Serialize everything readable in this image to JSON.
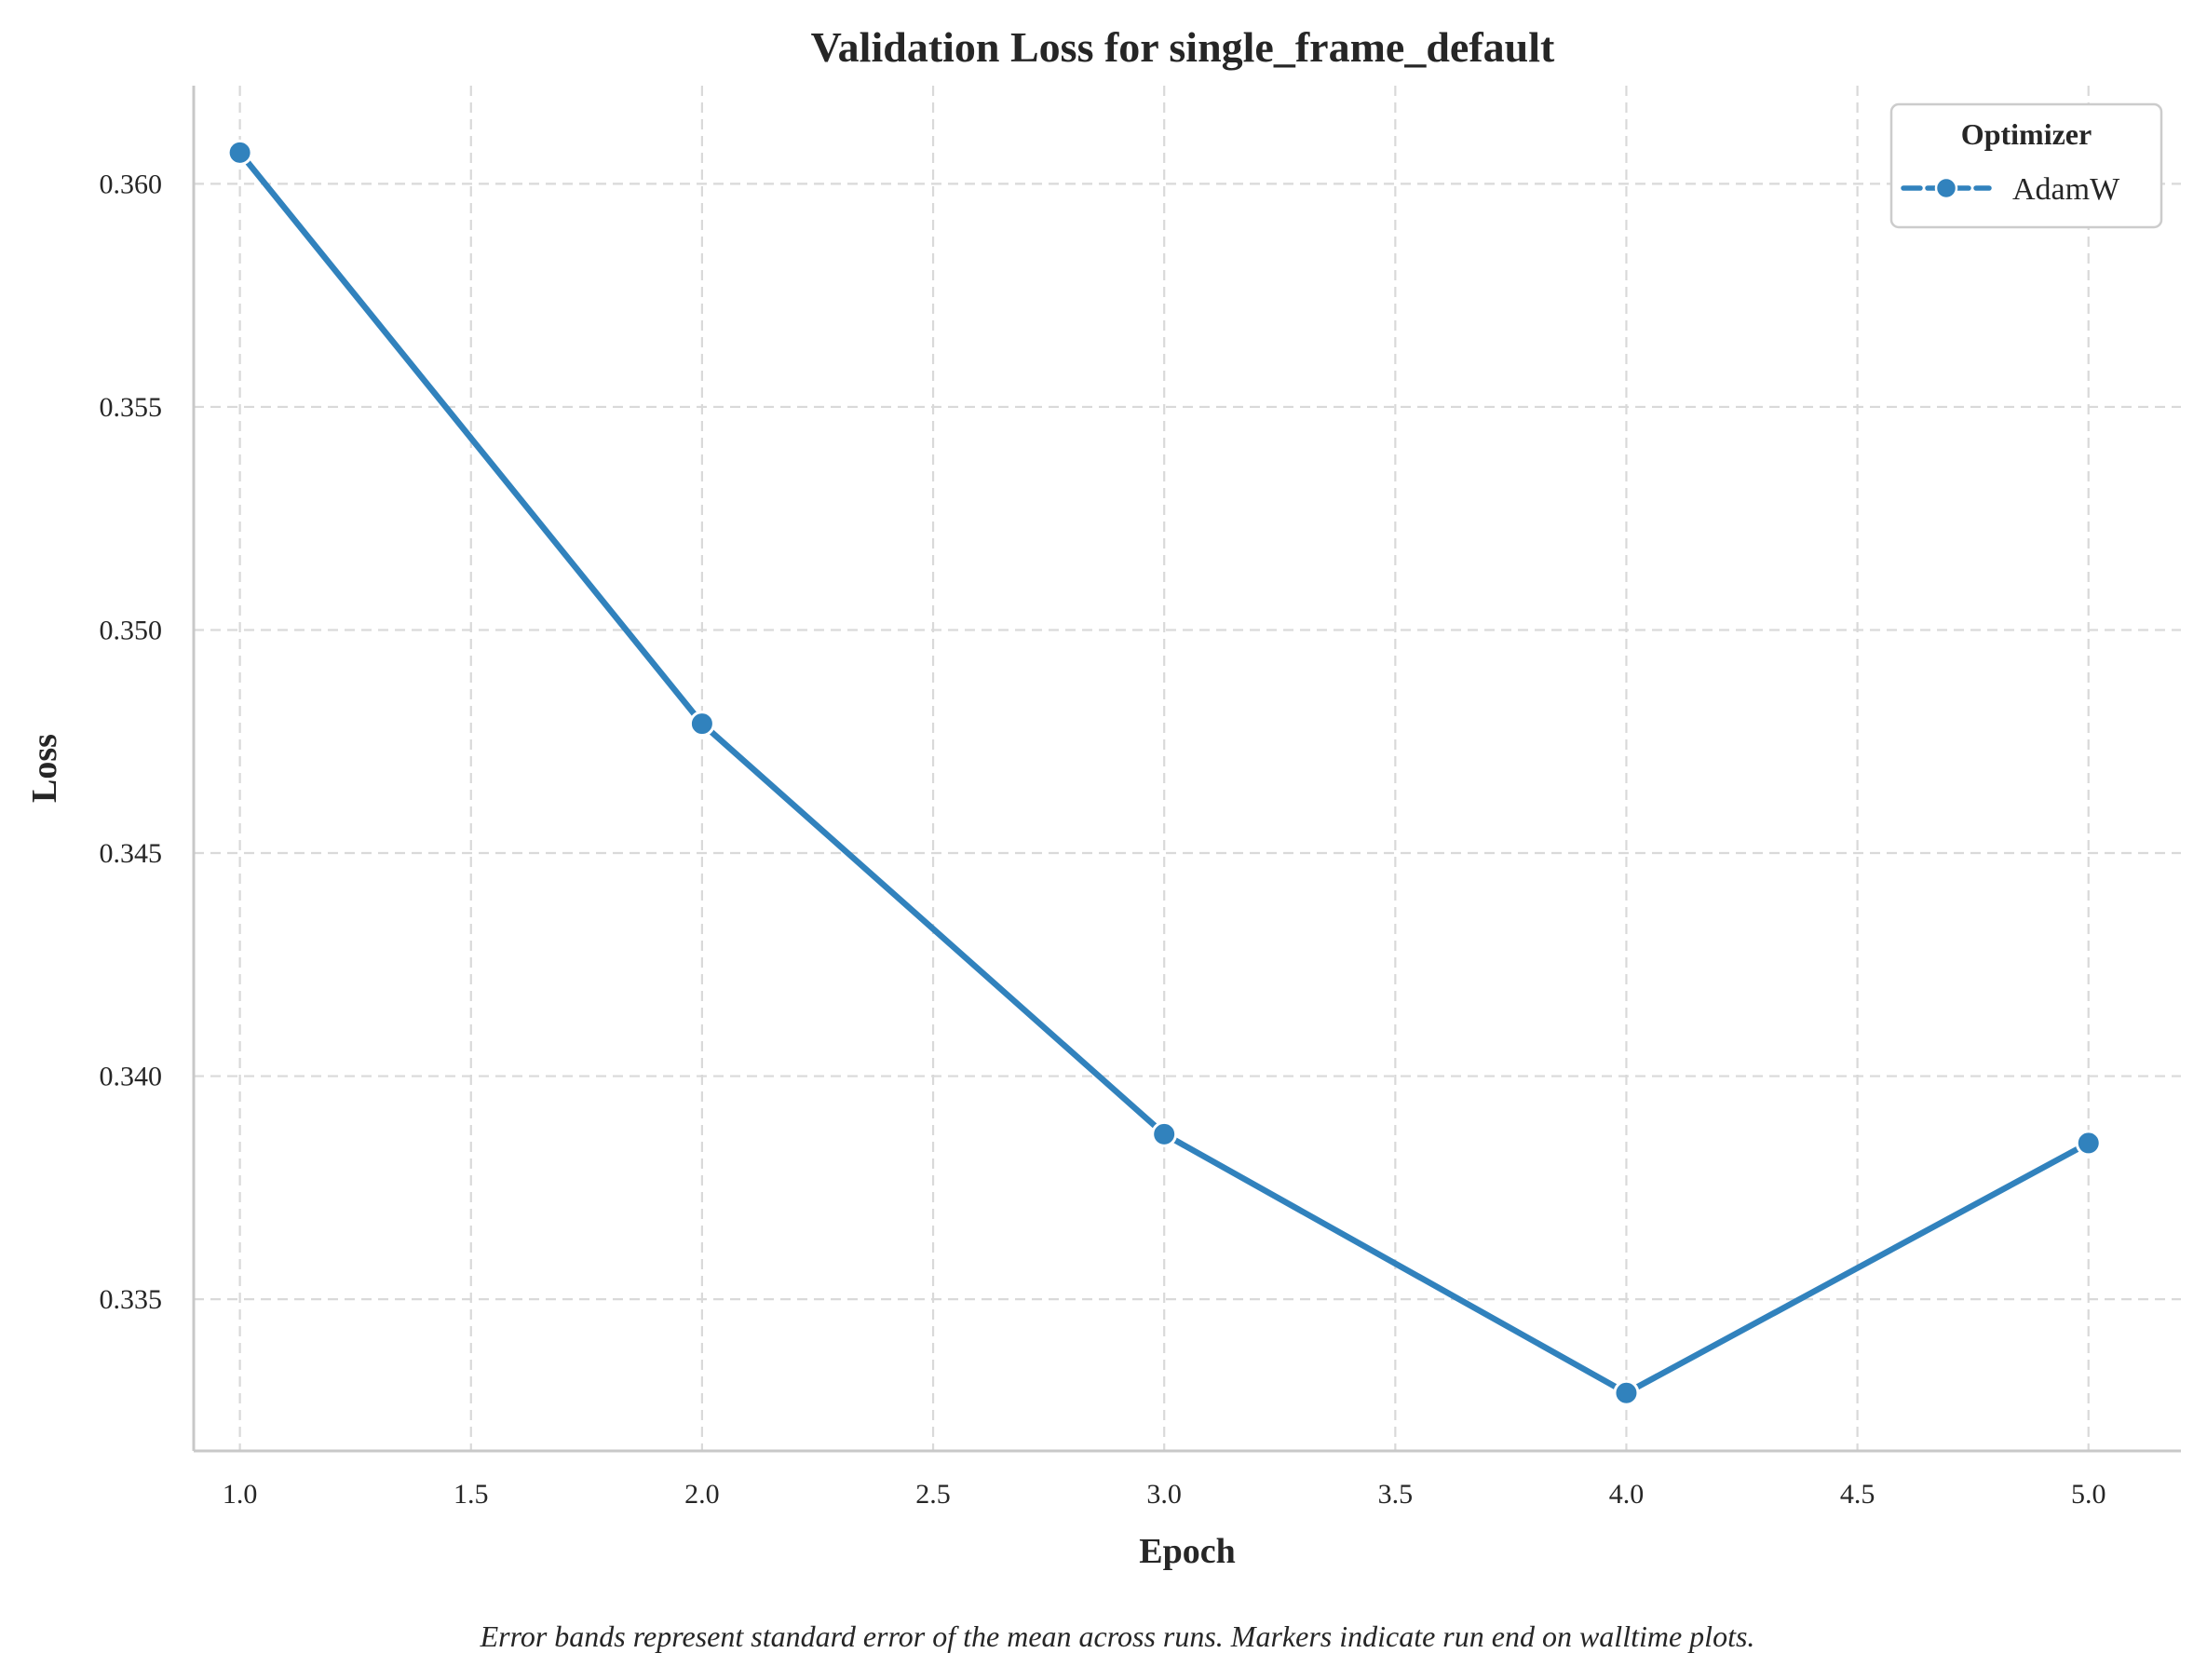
{
  "chart_data": {
    "type": "line",
    "title": "Validation Loss for single_frame_default",
    "xlabel": "Epoch",
    "ylabel": "Loss",
    "x_ticks": [
      "1.0",
      "1.5",
      "2.0",
      "2.5",
      "3.0",
      "3.5",
      "4.0",
      "4.5",
      "5.0"
    ],
    "y_ticks": [
      "0.335",
      "0.340",
      "0.345",
      "0.350",
      "0.355",
      "0.360"
    ],
    "xlim": [
      0.9,
      5.2
    ],
    "ylim": [
      0.3316,
      0.3622
    ],
    "grid": true,
    "legend": {
      "title": "Optimizer",
      "placement": "top-right"
    },
    "series": [
      {
        "name": "AdamW",
        "color": "#3182bd",
        "x": [
          1,
          2,
          3,
          4,
          5
        ],
        "y": [
          0.3607,
          0.3479,
          0.3387,
          0.3329,
          0.3385
        ]
      }
    ],
    "caption": "Error bands represent standard error of the mean across runs. Markers indicate run end on walltime plots."
  }
}
